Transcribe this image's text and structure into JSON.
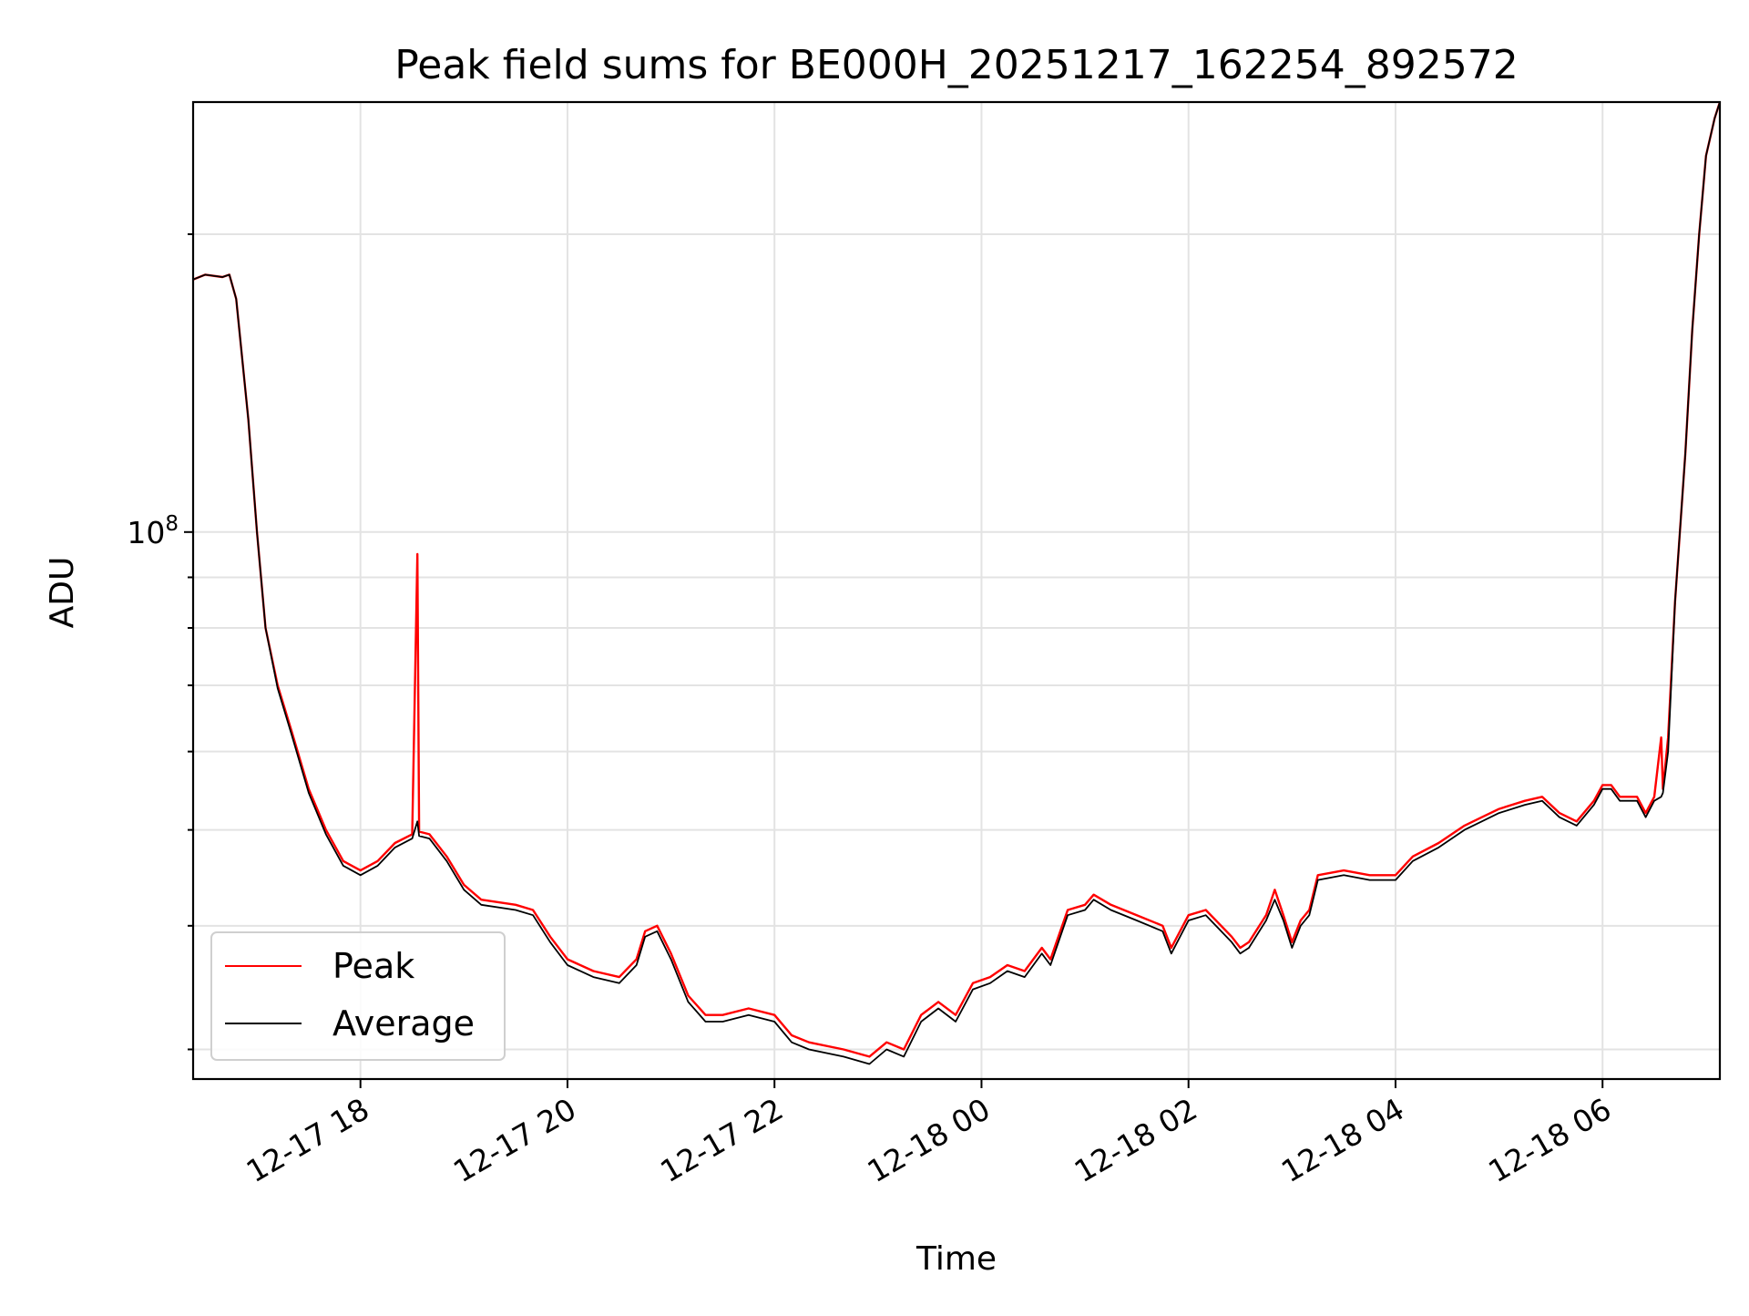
{
  "chart_data": {
    "type": "line",
    "title": "Peak field sums for BE000H_20251217_162254_892572",
    "xlabel": "Time",
    "ylabel": "ADU",
    "x_scale": "time",
    "y_scale": "log",
    "grid": true,
    "legend_placement": "lower-left",
    "xlim": [
      "2025-12-17 16:23",
      "2025-12-18 07:08"
    ],
    "ylim": [
      28000000,
      272000000
    ],
    "x_ticks": [
      "12-17 18",
      "12-17 20",
      "12-17 22",
      "12-18 00",
      "12-18 02",
      "12-18 04",
      "12-18 06"
    ],
    "y_major_ticks": [
      {
        "value": 100000000,
        "label": "10^8"
      }
    ],
    "colors": {
      "peak": "#ff0000",
      "average": "#000000"
    },
    "series": [
      {
        "name": "Peak",
        "color": "#ff0000",
        "points": [
          [
            "2025-12-17 16:23",
            180000000
          ],
          [
            "2025-12-17 16:30",
            182000000
          ],
          [
            "2025-12-17 16:40",
            181000000
          ],
          [
            "2025-12-17 16:44",
            182000000
          ],
          [
            "2025-12-17 16:48",
            172000000
          ],
          [
            "2025-12-17 16:55",
            130000000
          ],
          [
            "2025-12-17 17:00",
            100000000
          ],
          [
            "2025-12-17 17:05",
            80000000
          ],
          [
            "2025-12-17 17:12",
            70000000
          ],
          [
            "2025-12-17 17:20",
            63000000
          ],
          [
            "2025-12-17 17:30",
            55000000
          ],
          [
            "2025-12-17 17:40",
            50000000
          ],
          [
            "2025-12-17 17:50",
            46500000
          ],
          [
            "2025-12-17 18:00",
            45500000
          ],
          [
            "2025-12-17 18:10",
            46500000
          ],
          [
            "2025-12-17 18:20",
            48500000
          ],
          [
            "2025-12-17 18:30",
            49500000
          ],
          [
            "2025-12-17 18:33",
            95000000
          ],
          [
            "2025-12-17 18:34",
            49800000
          ],
          [
            "2025-12-17 18:40",
            49500000
          ],
          [
            "2025-12-17 18:50",
            47000000
          ],
          [
            "2025-12-17 19:00",
            44000000
          ],
          [
            "2025-12-17 19:10",
            42500000
          ],
          [
            "2025-12-17 19:30",
            42000000
          ],
          [
            "2025-12-17 19:40",
            41500000
          ],
          [
            "2025-12-17 19:50",
            39000000
          ],
          [
            "2025-12-17 20:00",
            37000000
          ],
          [
            "2025-12-17 20:15",
            36000000
          ],
          [
            "2025-12-17 20:30",
            35500000
          ],
          [
            "2025-12-17 20:40",
            37000000
          ],
          [
            "2025-12-17 20:45",
            39500000
          ],
          [
            "2025-12-17 20:52",
            40000000
          ],
          [
            "2025-12-17 21:00",
            37500000
          ],
          [
            "2025-12-17 21:10",
            34000000
          ],
          [
            "2025-12-17 21:20",
            32500000
          ],
          [
            "2025-12-17 21:30",
            32500000
          ],
          [
            "2025-12-17 21:45",
            33000000
          ],
          [
            "2025-12-17 22:00",
            32500000
          ],
          [
            "2025-12-17 22:10",
            31000000
          ],
          [
            "2025-12-17 22:20",
            30500000
          ],
          [
            "2025-12-17 22:40",
            30000000
          ],
          [
            "2025-12-17 22:55",
            29500000
          ],
          [
            "2025-12-17 23:05",
            30500000
          ],
          [
            "2025-12-17 23:15",
            30000000
          ],
          [
            "2025-12-17 23:25",
            32500000
          ],
          [
            "2025-12-17 23:35",
            33500000
          ],
          [
            "2025-12-17 23:45",
            32500000
          ],
          [
            "2025-12-17 23:55",
            35000000
          ],
          [
            "2025-12-18 00:05",
            35500000
          ],
          [
            "2025-12-18 00:15",
            36500000
          ],
          [
            "2025-12-18 00:25",
            36000000
          ],
          [
            "2025-12-18 00:35",
            38000000
          ],
          [
            "2025-12-18 00:40",
            37000000
          ],
          [
            "2025-12-18 00:50",
            41500000
          ],
          [
            "2025-12-18 01:00",
            42000000
          ],
          [
            "2025-12-18 01:05",
            43000000
          ],
          [
            "2025-12-18 01:15",
            42000000
          ],
          [
            "2025-12-18 01:30",
            41000000
          ],
          [
            "2025-12-18 01:45",
            40000000
          ],
          [
            "2025-12-18 01:50",
            38000000
          ],
          [
            "2025-12-18 02:00",
            41000000
          ],
          [
            "2025-12-18 02:10",
            41500000
          ],
          [
            "2025-12-18 02:25",
            39000000
          ],
          [
            "2025-12-18 02:30",
            38000000
          ],
          [
            "2025-12-18 02:35",
            38500000
          ],
          [
            "2025-12-18 02:45",
            41000000
          ],
          [
            "2025-12-18 02:50",
            43500000
          ],
          [
            "2025-12-18 02:55",
            41000000
          ],
          [
            "2025-12-18 03:00",
            38500000
          ],
          [
            "2025-12-18 03:05",
            40500000
          ],
          [
            "2025-12-18 03:10",
            41500000
          ],
          [
            "2025-12-18 03:15",
            45000000
          ],
          [
            "2025-12-18 03:30",
            45500000
          ],
          [
            "2025-12-18 03:45",
            45000000
          ],
          [
            "2025-12-18 04:00",
            45000000
          ],
          [
            "2025-12-18 04:10",
            47000000
          ],
          [
            "2025-12-18 04:25",
            48500000
          ],
          [
            "2025-12-18 04:40",
            50500000
          ],
          [
            "2025-12-18 04:50",
            51500000
          ],
          [
            "2025-12-18 05:00",
            52500000
          ],
          [
            "2025-12-18 05:15",
            53500000
          ],
          [
            "2025-12-18 05:25",
            54000000
          ],
          [
            "2025-12-18 05:35",
            52000000
          ],
          [
            "2025-12-18 05:45",
            51000000
          ],
          [
            "2025-12-18 05:55",
            53500000
          ],
          [
            "2025-12-18 06:00",
            55500000
          ],
          [
            "2025-12-18 06:05",
            55500000
          ],
          [
            "2025-12-18 06:10",
            54000000
          ],
          [
            "2025-12-18 06:20",
            54000000
          ],
          [
            "2025-12-18 06:25",
            52000000
          ],
          [
            "2025-12-18 06:30",
            54000000
          ],
          [
            "2025-12-18 06:34",
            62000000
          ],
          [
            "2025-12-18 06:35",
            55000000
          ],
          [
            "2025-12-18 06:38",
            62000000
          ],
          [
            "2025-12-18 06:42",
            85000000
          ],
          [
            "2025-12-18 06:48",
            120000000
          ],
          [
            "2025-12-18 06:52",
            160000000
          ],
          [
            "2025-12-18 06:56",
            200000000
          ],
          [
            "2025-12-18 07:00",
            240000000
          ],
          [
            "2025-12-18 07:05",
            262000000
          ],
          [
            "2025-12-18 07:08",
            272000000
          ]
        ]
      },
      {
        "name": "Average",
        "color": "#000000",
        "points": [
          [
            "2025-12-17 16:23",
            180000000
          ],
          [
            "2025-12-17 16:30",
            182000000
          ],
          [
            "2025-12-17 16:40",
            181000000
          ],
          [
            "2025-12-17 16:44",
            182000000
          ],
          [
            "2025-12-17 16:48",
            172000000
          ],
          [
            "2025-12-17 16:55",
            130000000
          ],
          [
            "2025-12-17 17:00",
            100000000
          ],
          [
            "2025-12-17 17:05",
            80000000
          ],
          [
            "2025-12-17 17:12",
            69500000
          ],
          [
            "2025-12-17 17:20",
            62500000
          ],
          [
            "2025-12-17 17:30",
            54500000
          ],
          [
            "2025-12-17 17:40",
            49500000
          ],
          [
            "2025-12-17 17:50",
            46000000
          ],
          [
            "2025-12-17 18:00",
            45000000
          ],
          [
            "2025-12-17 18:10",
            46000000
          ],
          [
            "2025-12-17 18:20",
            48000000
          ],
          [
            "2025-12-17 18:30",
            49000000
          ],
          [
            "2025-12-17 18:33",
            51000000
          ],
          [
            "2025-12-17 18:34",
            49300000
          ],
          [
            "2025-12-17 18:40",
            49000000
          ],
          [
            "2025-12-17 18:50",
            46500000
          ],
          [
            "2025-12-17 19:00",
            43500000
          ],
          [
            "2025-12-17 19:10",
            42000000
          ],
          [
            "2025-12-17 19:30",
            41500000
          ],
          [
            "2025-12-17 19:40",
            41000000
          ],
          [
            "2025-12-17 19:50",
            38500000
          ],
          [
            "2025-12-17 20:00",
            36500000
          ],
          [
            "2025-12-17 20:15",
            35500000
          ],
          [
            "2025-12-17 20:30",
            35000000
          ],
          [
            "2025-12-17 20:40",
            36500000
          ],
          [
            "2025-12-17 20:45",
            39000000
          ],
          [
            "2025-12-17 20:52",
            39500000
          ],
          [
            "2025-12-17 21:00",
            37000000
          ],
          [
            "2025-12-17 21:10",
            33500000
          ],
          [
            "2025-12-17 21:20",
            32000000
          ],
          [
            "2025-12-17 21:30",
            32000000
          ],
          [
            "2025-12-17 21:45",
            32500000
          ],
          [
            "2025-12-17 22:00",
            32000000
          ],
          [
            "2025-12-17 22:10",
            30500000
          ],
          [
            "2025-12-17 22:20",
            30000000
          ],
          [
            "2025-12-17 22:40",
            29500000
          ],
          [
            "2025-12-17 22:55",
            29000000
          ],
          [
            "2025-12-17 23:05",
            30000000
          ],
          [
            "2025-12-17 23:15",
            29500000
          ],
          [
            "2025-12-17 23:25",
            32000000
          ],
          [
            "2025-12-17 23:35",
            33000000
          ],
          [
            "2025-12-17 23:45",
            32000000
          ],
          [
            "2025-12-17 23:55",
            34500000
          ],
          [
            "2025-12-18 00:05",
            35000000
          ],
          [
            "2025-12-18 00:15",
            36000000
          ],
          [
            "2025-12-18 00:25",
            35500000
          ],
          [
            "2025-12-18 00:35",
            37500000
          ],
          [
            "2025-12-18 00:40",
            36500000
          ],
          [
            "2025-12-18 00:50",
            41000000
          ],
          [
            "2025-12-18 01:00",
            41500000
          ],
          [
            "2025-12-18 01:05",
            42500000
          ],
          [
            "2025-12-18 01:15",
            41500000
          ],
          [
            "2025-12-18 01:30",
            40500000
          ],
          [
            "2025-12-18 01:45",
            39500000
          ],
          [
            "2025-12-18 01:50",
            37500000
          ],
          [
            "2025-12-18 02:00",
            40500000
          ],
          [
            "2025-12-18 02:10",
            41000000
          ],
          [
            "2025-12-18 02:25",
            38500000
          ],
          [
            "2025-12-18 02:30",
            37500000
          ],
          [
            "2025-12-18 02:35",
            38000000
          ],
          [
            "2025-12-18 02:45",
            40500000
          ],
          [
            "2025-12-18 02:50",
            42500000
          ],
          [
            "2025-12-18 02:55",
            40500000
          ],
          [
            "2025-12-18 03:00",
            38000000
          ],
          [
            "2025-12-18 03:05",
            40000000
          ],
          [
            "2025-12-18 03:10",
            41000000
          ],
          [
            "2025-12-18 03:15",
            44500000
          ],
          [
            "2025-12-18 03:30",
            45000000
          ],
          [
            "2025-12-18 03:45",
            44500000
          ],
          [
            "2025-12-18 04:00",
            44500000
          ],
          [
            "2025-12-18 04:10",
            46500000
          ],
          [
            "2025-12-18 04:25",
            48000000
          ],
          [
            "2025-12-18 04:40",
            50000000
          ],
          [
            "2025-12-18 04:50",
            51000000
          ],
          [
            "2025-12-18 05:00",
            52000000
          ],
          [
            "2025-12-18 05:15",
            53000000
          ],
          [
            "2025-12-18 05:25",
            53500000
          ],
          [
            "2025-12-18 05:35",
            51500000
          ],
          [
            "2025-12-18 05:45",
            50500000
          ],
          [
            "2025-12-18 05:55",
            53000000
          ],
          [
            "2025-12-18 06:00",
            55000000
          ],
          [
            "2025-12-18 06:05",
            55000000
          ],
          [
            "2025-12-18 06:10",
            53500000
          ],
          [
            "2025-12-18 06:20",
            53500000
          ],
          [
            "2025-12-18 06:25",
            51500000
          ],
          [
            "2025-12-18 06:30",
            53500000
          ],
          [
            "2025-12-18 06:34",
            54000000
          ],
          [
            "2025-12-18 06:35",
            54500000
          ],
          [
            "2025-12-18 06:38",
            60000000
          ],
          [
            "2025-12-18 06:42",
            85000000
          ],
          [
            "2025-12-18 06:48",
            120000000
          ],
          [
            "2025-12-18 06:52",
            160000000
          ],
          [
            "2025-12-18 06:56",
            200000000
          ],
          [
            "2025-12-18 07:00",
            240000000
          ],
          [
            "2025-12-18 07:05",
            262000000
          ],
          [
            "2025-12-18 07:08",
            272000000
          ]
        ]
      }
    ]
  }
}
